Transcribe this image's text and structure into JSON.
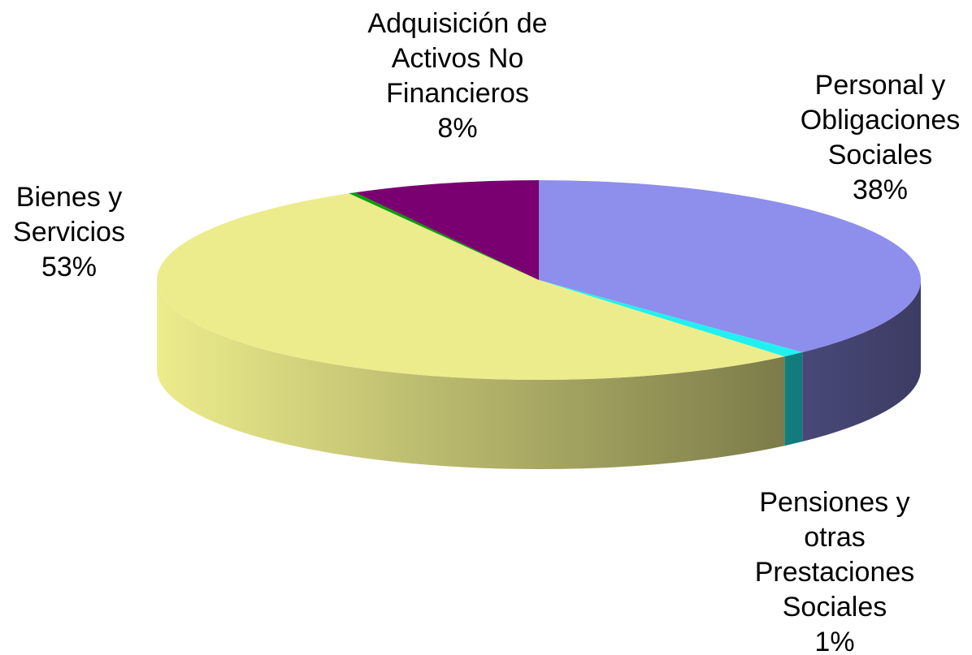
{
  "chart_data": {
    "type": "pie",
    "categories": [
      "Personal y Obligaciones Sociales",
      "Pensiones y otras Prestaciones Sociales",
      "Bienes y Servicios",
      null,
      "Adquisición de Activos No Financieros"
    ],
    "values": [
      38,
      1,
      53,
      0.3,
      8
    ],
    "value_labels": [
      "38%",
      "1%",
      "53%",
      null,
      "8%"
    ],
    "colors": [
      "#8e8eec",
      "#22f0f0",
      "#ecec8c",
      "#00a000",
      "#7a0072"
    ]
  }
}
